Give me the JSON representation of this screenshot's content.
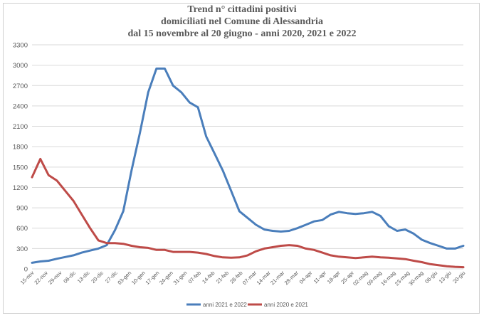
{
  "chart_data": {
    "type": "line",
    "title_lines": [
      "Trend n° cittadini positivi",
      "domiciliati nel Comune di Alessandria",
      "dal 15 novembre al 20 giugno - anni 2020, 2021 e 2022"
    ],
    "xlabel": "",
    "ylabel": "",
    "ylim": [
      0,
      3300
    ],
    "yticks": [
      0,
      300,
      600,
      900,
      1200,
      1500,
      1800,
      2100,
      2400,
      2700,
      3000,
      3300
    ],
    "x_tick_labels": [
      "15-nov",
      "22-nov",
      "29-nov",
      "06-dic",
      "13-dic",
      "20-dic",
      "27-dic",
      "03-gen",
      "10-gen",
      "17-gen",
      "24-gen",
      "31-gen",
      "07-feb",
      "14-feb",
      "21-feb",
      "28-feb",
      "07-mar",
      "14-mar",
      "21-mar",
      "28-mar",
      "04-apr",
      "11-apr",
      "18-apr",
      "25-apr",
      "02-mag",
      "09-mag",
      "16-mag",
      "23-mag",
      "30-mag",
      "06-giu",
      "13-giu",
      "20-giu"
    ],
    "grid": true,
    "legend_position": "bottom",
    "series": [
      {
        "name": "anni 2021 e 2022",
        "color": "#4a7ebb",
        "values": [
          90,
          110,
          120,
          150,
          175,
          200,
          240,
          270,
          300,
          350,
          570,
          850,
          1450,
          2000,
          2600,
          2950,
          2950,
          2700,
          2600,
          2450,
          2380,
          1950,
          1700,
          1450,
          1150,
          850,
          750,
          650,
          580,
          560,
          550,
          560,
          600,
          650,
          700,
          720,
          800,
          840,
          820,
          810,
          820,
          840,
          780,
          630,
          560,
          580,
          520,
          430,
          380,
          340,
          300,
          300,
          340
        ]
      },
      {
        "name": "anni 2020 e 2021",
        "color": "#be4b48",
        "values": [
          1350,
          1620,
          1380,
          1300,
          1150,
          1000,
          800,
          600,
          420,
          380,
          380,
          370,
          340,
          320,
          310,
          280,
          280,
          250,
          250,
          250,
          240,
          220,
          190,
          170,
          165,
          170,
          200,
          260,
          300,
          320,
          340,
          350,
          340,
          300,
          280,
          240,
          200,
          180,
          170,
          160,
          170,
          180,
          170,
          165,
          155,
          145,
          120,
          100,
          70,
          55,
          40,
          30,
          25
        ]
      }
    ]
  }
}
